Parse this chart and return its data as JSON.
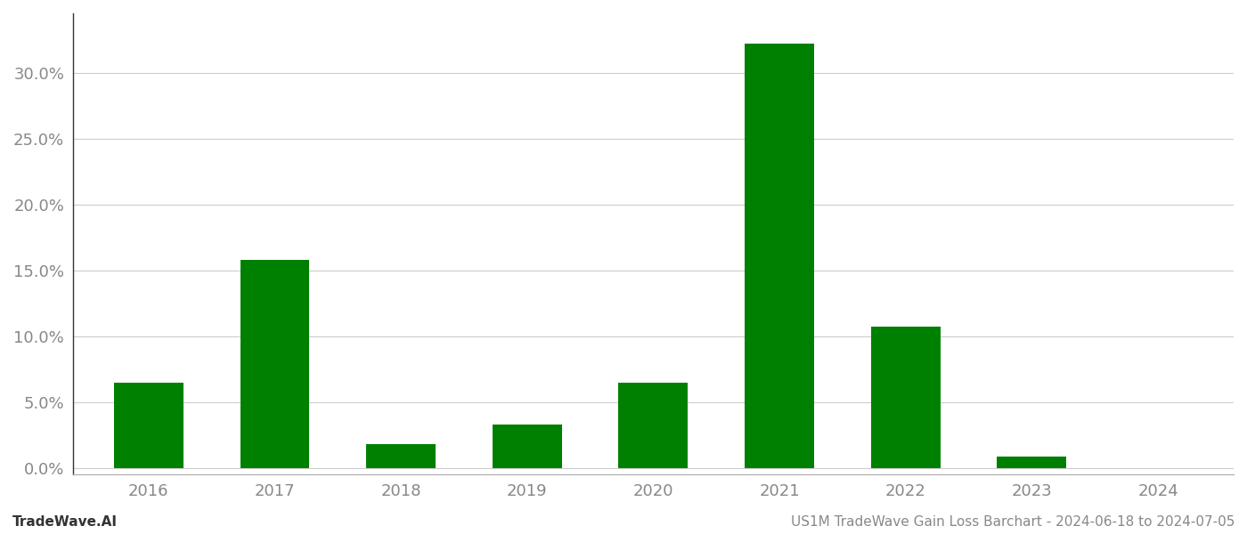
{
  "years": [
    2016,
    2017,
    2018,
    2019,
    2020,
    2021,
    2022,
    2023,
    2024
  ],
  "values": [
    0.065,
    0.158,
    0.018,
    0.033,
    0.065,
    0.322,
    0.107,
    0.009,
    0.0
  ],
  "bar_color": "#008000",
  "background_color": "#ffffff",
  "grid_color": "#cccccc",
  "ylabel_ticks": [
    0.0,
    0.05,
    0.1,
    0.15,
    0.2,
    0.25,
    0.3
  ],
  "ylim": [
    -0.005,
    0.345
  ],
  "xlabel_fontsize": 13,
  "ylabel_fontsize": 13,
  "tick_color": "#888888",
  "footer_left": "TradeWave.AI",
  "footer_right": "US1M TradeWave Gain Loss Barchart - 2024-06-18 to 2024-07-05",
  "footer_fontsize": 11,
  "bar_width": 0.55,
  "spine_color": "#aaaaaa",
  "left_spine_color": "#333333"
}
